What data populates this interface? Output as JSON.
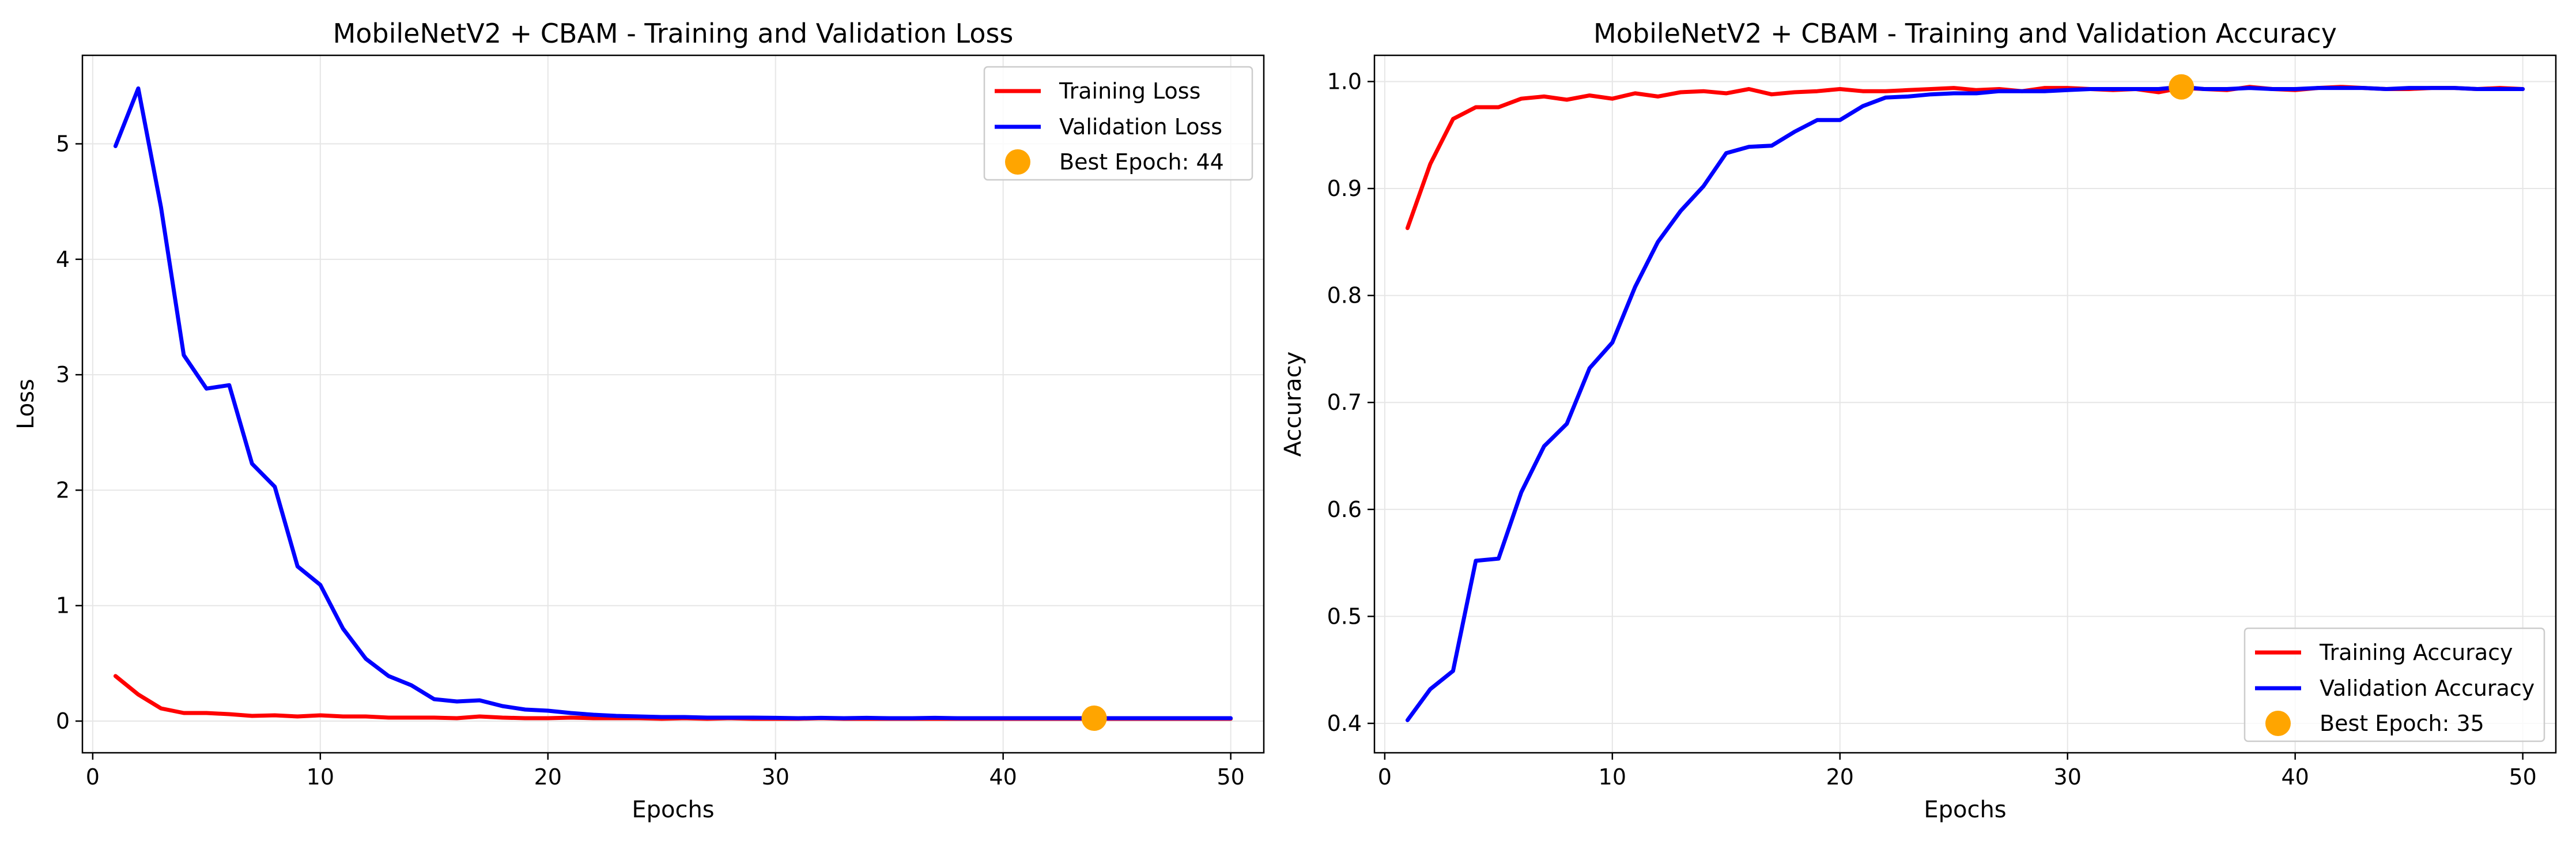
{
  "chart_data": [
    {
      "type": "line",
      "title": "MobileNetV2 + CBAM - Training and Validation Loss",
      "xlabel": "Epochs",
      "ylabel": "Loss",
      "xlim": [
        -0.4525,
        51.4525
      ],
      "ylim": [
        -0.2745,
        5.7665
      ],
      "xticks": [
        0,
        10,
        20,
        30,
        40,
        50
      ],
      "yticks": [
        0,
        1,
        2,
        3,
        4,
        5
      ],
      "grid": true,
      "legend_position": "top-right",
      "x": [
        1,
        2,
        3,
        4,
        5,
        6,
        7,
        8,
        9,
        10,
        11,
        12,
        13,
        14,
        15,
        16,
        17,
        18,
        19,
        20,
        21,
        22,
        23,
        24,
        25,
        26,
        27,
        28,
        29,
        30,
        31,
        32,
        33,
        34,
        35,
        36,
        37,
        38,
        39,
        40,
        41,
        42,
        43,
        44,
        45,
        46,
        47,
        48,
        49,
        50
      ],
      "series": [
        {
          "name": "Training Loss",
          "color": "#ff0000",
          "values": [
            0.39,
            0.23,
            0.11,
            0.07,
            0.07,
            0.06,
            0.045,
            0.05,
            0.04,
            0.05,
            0.04,
            0.04,
            0.03,
            0.03,
            0.03,
            0.025,
            0.04,
            0.03,
            0.025,
            0.025,
            0.03,
            0.025,
            0.025,
            0.025,
            0.02,
            0.025,
            0.02,
            0.025,
            0.02,
            0.02,
            0.02,
            0.025,
            0.02,
            0.02,
            0.02,
            0.02,
            0.02,
            0.02,
            0.02,
            0.02,
            0.02,
            0.02,
            0.02,
            0.02,
            0.02,
            0.02,
            0.02,
            0.02,
            0.02,
            0.02
          ]
        },
        {
          "name": "Validation Loss",
          "color": "#0000ff",
          "values": [
            4.98,
            5.48,
            4.45,
            3.17,
            2.88,
            2.91,
            2.23,
            2.03,
            1.34,
            1.18,
            0.8,
            0.54,
            0.39,
            0.31,
            0.19,
            0.17,
            0.18,
            0.13,
            0.1,
            0.09,
            0.07,
            0.055,
            0.045,
            0.04,
            0.035,
            0.035,
            0.03,
            0.03,
            0.03,
            0.028,
            0.025,
            0.028,
            0.025,
            0.028,
            0.025,
            0.025,
            0.028,
            0.025,
            0.025,
            0.025,
            0.025,
            0.025,
            0.025,
            0.025,
            0.025,
            0.025,
            0.025,
            0.025,
            0.025,
            0.025
          ]
        }
      ],
      "marker": {
        "name": "Best Epoch: 44",
        "x": 44,
        "y": 0.025,
        "color": "#ffa500"
      }
    },
    {
      "type": "line",
      "title": "MobileNetV2 + CBAM - Training and Validation Accuracy",
      "xlabel": "Epochs",
      "ylabel": "Accuracy",
      "xlim": [
        -0.4525,
        51.4525
      ],
      "ylim": [
        0.3725,
        1.0245
      ],
      "xticks": [
        0,
        10,
        20,
        30,
        40,
        50
      ],
      "yticks": [
        0.4,
        0.5,
        0.6,
        0.7,
        0.8,
        0.9,
        1.0
      ],
      "ytick_labels": [
        "0.4",
        "0.5",
        "0.6",
        "0.7",
        "0.8",
        "0.9",
        "1.0"
      ],
      "grid": true,
      "legend_position": "bottom-right",
      "x": [
        1,
        2,
        3,
        4,
        5,
        6,
        7,
        8,
        9,
        10,
        11,
        12,
        13,
        14,
        15,
        16,
        17,
        18,
        19,
        20,
        21,
        22,
        23,
        24,
        25,
        26,
        27,
        28,
        29,
        30,
        31,
        32,
        33,
        34,
        35,
        36,
        37,
        38,
        39,
        40,
        41,
        42,
        43,
        44,
        45,
        46,
        47,
        48,
        49,
        50
      ],
      "series": [
        {
          "name": "Training Accuracy",
          "color": "#ff0000",
          "values": [
            0.863,
            0.923,
            0.965,
            0.976,
            0.976,
            0.984,
            0.986,
            0.983,
            0.987,
            0.984,
            0.989,
            0.986,
            0.99,
            0.991,
            0.989,
            0.993,
            0.988,
            0.99,
            0.991,
            0.993,
            0.991,
            0.991,
            0.992,
            0.993,
            0.994,
            0.992,
            0.993,
            0.991,
            0.994,
            0.994,
            0.993,
            0.992,
            0.993,
            0.99,
            0.994,
            0.993,
            0.992,
            0.995,
            0.993,
            0.992,
            0.994,
            0.995,
            0.994,
            0.993,
            0.993,
            0.994,
            0.994,
            0.993,
            0.994,
            0.993
          ]
        },
        {
          "name": "Validation Accuracy",
          "color": "#0000ff",
          "values": [
            0.403,
            0.432,
            0.449,
            0.552,
            0.554,
            0.616,
            0.659,
            0.68,
            0.732,
            0.756,
            0.808,
            0.85,
            0.879,
            0.902,
            0.933,
            0.939,
            0.94,
            0.953,
            0.964,
            0.964,
            0.977,
            0.985,
            0.986,
            0.988,
            0.989,
            0.989,
            0.991,
            0.991,
            0.991,
            0.992,
            0.993,
            0.993,
            0.993,
            0.993,
            0.995,
            0.993,
            0.993,
            0.994,
            0.993,
            0.993,
            0.994,
            0.994,
            0.994,
            0.993,
            0.994,
            0.994,
            0.994,
            0.993,
            0.993,
            0.993
          ]
        }
      ],
      "marker": {
        "name": "Best Epoch: 35",
        "x": 35,
        "y": 0.995,
        "color": "#ffa500"
      }
    }
  ]
}
